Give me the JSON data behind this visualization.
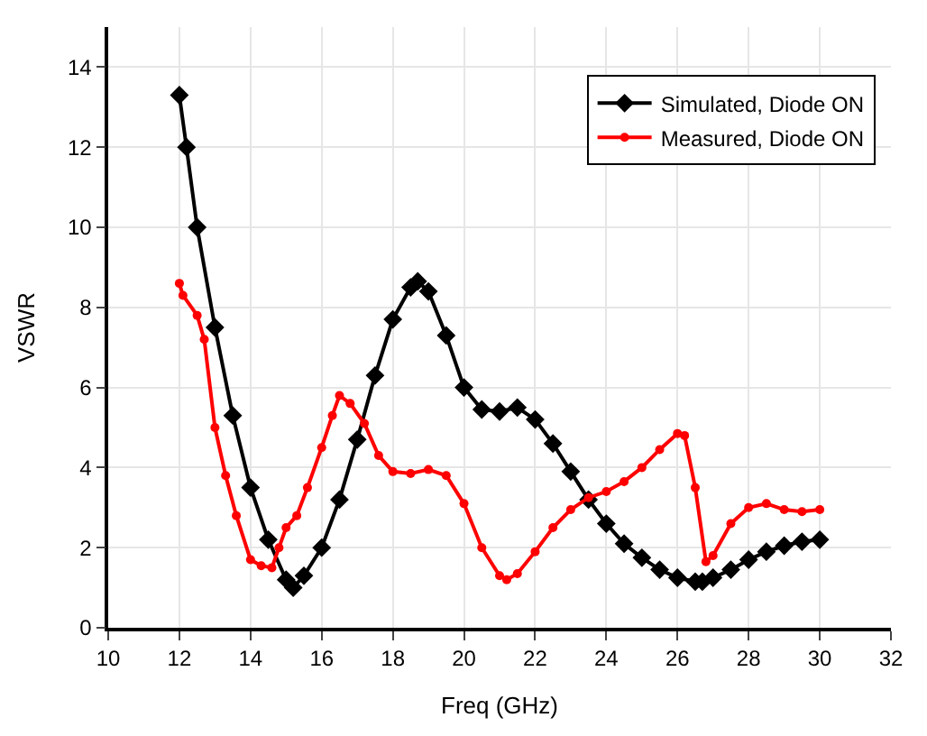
{
  "chart_data": {
    "type": "line",
    "xlabel": "Freq (GHz)",
    "ylabel": "VSWR",
    "xlim": [
      10,
      32
    ],
    "xticks": [
      10,
      12,
      14,
      16,
      18,
      20,
      22,
      24,
      26,
      28,
      30,
      32
    ],
    "ylim": [
      0,
      15
    ],
    "yticks": [
      0,
      2,
      4,
      6,
      8,
      10,
      12,
      14
    ],
    "grid": true,
    "legend": "top right",
    "series": [
      {
        "name": "Simulated, Diode ON",
        "color": "#000000",
        "marker": "diamond",
        "x": [
          12,
          12.2,
          12.5,
          13,
          13.5,
          14,
          14.5,
          15,
          15.2,
          15.5,
          16,
          16.5,
          17,
          17.5,
          18,
          18.5,
          18.7,
          19,
          19.5,
          20,
          20.5,
          21,
          21.5,
          22,
          22.5,
          23,
          23.5,
          24,
          24.5,
          25,
          25.5,
          26,
          26.5,
          26.7,
          27,
          27.5,
          28,
          28.5,
          29,
          29.5,
          30
        ],
        "values": [
          13.3,
          12.0,
          10.0,
          7.5,
          5.3,
          3.5,
          2.2,
          1.2,
          1.0,
          1.3,
          2.0,
          3.2,
          4.7,
          6.3,
          7.7,
          8.5,
          8.65,
          8.4,
          7.3,
          6.0,
          5.45,
          5.4,
          5.5,
          5.2,
          4.6,
          3.9,
          3.2,
          2.6,
          2.1,
          1.75,
          1.45,
          1.25,
          1.15,
          1.15,
          1.25,
          1.45,
          1.7,
          1.9,
          2.05,
          2.15,
          2.2
        ]
      },
      {
        "name": "Measured, Diode ON",
        "color": "#ff0000",
        "marker": "circle",
        "x": [
          12,
          12.1,
          12.5,
          12.7,
          13,
          13.3,
          13.6,
          14,
          14.3,
          14.6,
          14.8,
          15,
          15.3,
          15.6,
          16,
          16.3,
          16.5,
          16.8,
          17.2,
          17.6,
          18,
          18.5,
          19,
          19.5,
          20,
          20.5,
          21,
          21.2,
          21.5,
          22,
          22.5,
          23,
          23.5,
          24,
          24.5,
          25,
          25.5,
          26,
          26.2,
          26.5,
          26.8,
          27,
          27.5,
          28,
          28.5,
          29,
          29.5,
          30
        ],
        "values": [
          8.6,
          8.3,
          7.8,
          7.2,
          5.0,
          3.8,
          2.8,
          1.7,
          1.55,
          1.5,
          2.0,
          2.5,
          2.8,
          3.5,
          4.5,
          5.3,
          5.8,
          5.6,
          5.1,
          4.3,
          3.9,
          3.85,
          3.95,
          3.8,
          3.1,
          2.0,
          1.3,
          1.2,
          1.35,
          1.9,
          2.5,
          2.95,
          3.25,
          3.4,
          3.65,
          4.0,
          4.45,
          4.85,
          4.8,
          3.5,
          1.65,
          1.8,
          2.6,
          3.0,
          3.1,
          2.95,
          2.9,
          2.95
        ]
      }
    ]
  }
}
